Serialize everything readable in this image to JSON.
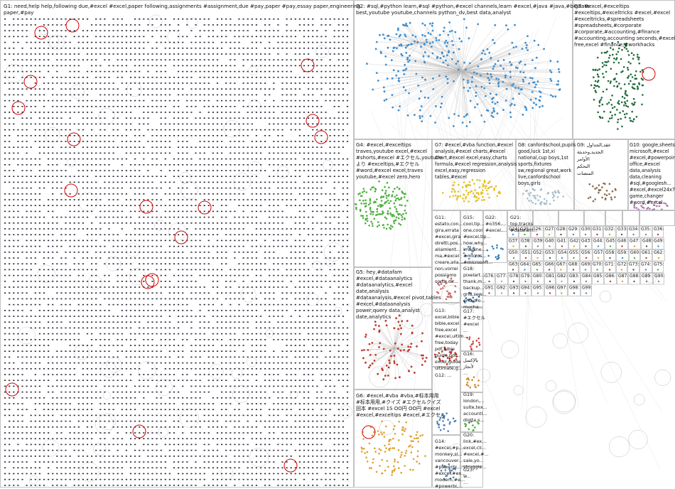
{
  "groups": [
    {
      "id": "g1",
      "label_lines": [
        "G1: need,help  help,following  due,#excel  #excel,paper  following,assignments  #assignment,due  #pay,paper  #pay,essay  paper,engineering",
        "paper,#pay"
      ]
    },
    {
      "id": "g2",
      "label_lines": [
        "G2: #sql,#python  learn,#sql  #python,#excel  channels,learn  #excel,#java  #java,#bigdata",
        "best,youtube  youtube,channels  python_dv,best  data,analyst"
      ]
    },
    {
      "id": "g3",
      "label_lines": [
        "G3: #excel,#exceltips",
        "#exceltips,#exceltricks  #excel,#excel",
        "#exceltricks,#spreadsheets",
        "#spreadsheets,#corporate",
        "#corporate,#accounting,#finance",
        "#accounting,accounting  seconds,#excel",
        "free,excel  #finance,#workhacks"
      ]
    },
    {
      "id": "g4",
      "label_lines": [
        "G4: #excel,#exceltips",
        "traves,youtube  excel,#excel",
        "#shorts,#excel  #エクセル,youtube",
        "より  #exceltips,#エクセル",
        "#word,#excel  excel,traves",
        "youtube,#excel  zero,hero"
      ]
    },
    {
      "id": "g5",
      "label_lines": [
        "G5: hey,#datafam",
        "#excel,#dataanalytics",
        "#dataanalytics,#excel",
        "date,analysis",
        "#dataanalysis,#excel  pivot,tables",
        "#excel,#dataanalysis",
        "power,query  data,analyst",
        "date,analytics"
      ]
    },
    {
      "id": "g6",
      "label_lines": [
        "G6: #excel,#vba  #vba,#标本用用",
        "#标本用用,#クイズ  #エクセルクイズ",
        "回本  #excel  1S  OO円  OO円  #excel",
        "#excel,#exceltips  #excel,#エクセル"
      ]
    },
    {
      "id": "g7",
      "label_lines": [
        "G7: #excel,#vba  function,#excel",
        "analysis,#excel  charts,#excel",
        "chart,#excel  excel,easy,charts",
        "formula,#excel  regression,analysis",
        "excel,easy,regression",
        "tables,#excel"
      ]
    },
    {
      "id": "g8",
      "label_lines": [
        "G8: canfordschool,pupils",
        "good,luck  1st,xi",
        "national,cup  boys,1st",
        "sports,fixtures",
        "sw,regional  great,work",
        "live,canfordschool",
        "boys,girls"
      ]
    },
    {
      "id": "g9",
      "label_lines": [
        "G9: عقد,الجداول",
        "الجديد,وحديثة",
        "الأوامر",
        "التحكم",
        "المنصات"
      ]
    },
    {
      "id": "g10",
      "label_lines": [
        "G10: google,sheets",
        "microsoft,#excel",
        "#excel,#powerpoint",
        "office,#excel",
        "data,analysis",
        "data,cleaning",
        "#sql,#googlesh...",
        "#excel,#excel24x7",
        "game,changer",
        "#word,#excel"
      ]
    },
    {
      "id": "g11",
      "label_lines": [
        "G11:",
        "estato,con...",
        "gira,errata",
        "#excel,gira",
        "diretti,pos...",
        "aliamlent...",
        "ma,#excel",
        "creare,alla...",
        "non,vorrei",
        "possiamo",
        "sortir,dir...",
        "posso..."
      ]
    },
    {
      "id": "g12",
      "label_lines": [
        "G12: ..."
      ]
    },
    {
      "id": "g13",
      "label_lines": [
        "G13:",
        "excel,bible",
        "bible,excel",
        "free,excel",
        "#excel,ultim...",
        "free,today",
        "pdf,bible",
        "guide,pdf...",
        "excel,guide",
        "ultimate,g..."
      ]
    },
    {
      "id": "g14",
      "label_lines": [
        "G14:",
        "#excel,#p...",
        "monkey,sl...",
        "vancouver...",
        "#powerbi,...",
        "#excel,#ex...",
        "modern,#e...",
        "#powerbi,..."
      ]
    },
    {
      "id": "g15",
      "label_lines": [
        "G15:",
        "cool,tip...",
        "one,cool",
        "#excel,tip...",
        "how,why...",
        "imagine...",
        "#micros...",
        "#microsoft..."
      ]
    },
    {
      "id": "g16",
      "label_lines": [
        "G16:",
        "بالإكسل",
        "لأنجاز",
        "..."
      ]
    },
    {
      "id": "g17",
      "label_lines": [
        "G17:",
        "#エクセル",
        "#excel",
        "..."
      ]
    },
    {
      "id": "g18",
      "label_lines": [
        "G18:",
        "pixelart...",
        "thank,m...",
        "backup...",
        "grid,sew...",
        "end,pro...",
        "mucha..."
      ]
    },
    {
      "id": "g19",
      "label_lines": [
        "G19:",
        "london,...",
        "suite,tex...",
        "accounti...",
        "digita,s..."
      ]
    },
    {
      "id": "g20",
      "label_lines": [
        "G20:",
        "link,#ex...",
        "excel,cli...",
        "#excel,#...",
        "sale,yo...",
        "struggle...",
        "reports..."
      ]
    },
    {
      "id": "g21",
      "label_lines": [
        "G21:",
        "top,tracks",
        "#datafam..."
      ]
    },
    {
      "id": "g22",
      "label_lines": [
        "G22:",
        "#o356,...",
        "#excel,..."
      ]
    },
    {
      "id": "g23",
      "label_lines": [
        "G23:",
        "w...",
        "..."
      ]
    }
  ],
  "small_groups": [
    "G24",
    "G25",
    "G26",
    "G27",
    "G28",
    "G29",
    "G30",
    "G31",
    "G32",
    "G33",
    "G34",
    "G35",
    "G36",
    "G37",
    "G38",
    "G39",
    "G40",
    "G41",
    "G42",
    "G43",
    "G44",
    "G45",
    "G46",
    "G47",
    "G48",
    "G49",
    "G50",
    "G51",
    "G52",
    "G53",
    "G54",
    "G55",
    "G56",
    "G57",
    "G58",
    "G59",
    "G60",
    "G61",
    "G62",
    "G63",
    "G64",
    "G65",
    "G66",
    "G67",
    "G68",
    "G69",
    "G70",
    "G71",
    "G72",
    "G73",
    "G74",
    "G75",
    "G76",
    "G77",
    "G78",
    "G79",
    "G80",
    "G81",
    "G82",
    "G83",
    "G84",
    "G85",
    "G86",
    "G87",
    "G88",
    "G89",
    "G90",
    "G91",
    "G92",
    "G93",
    "G94",
    "G95",
    "G96",
    "G97",
    "G98",
    "G99"
  ],
  "colors": {
    "background": "#ffffff",
    "panel_border": "#9a9a9a",
    "label_text": "#111111",
    "edge": "#b8b8b8",
    "g1_node": "#2a2a3c",
    "g2_node": "#3f8fd0",
    "g3_node": "#1f6b3a",
    "g4_node": "#4caf3e",
    "g5_node": "#c0392b",
    "g6_node": "#e0a030",
    "g7_node": "#e6c020",
    "g8_node": "#a7bdcc",
    "g9_node": "#8b6a4e",
    "g10_node": "#b07bb0",
    "highlight_circle": "#d40000"
  }
}
